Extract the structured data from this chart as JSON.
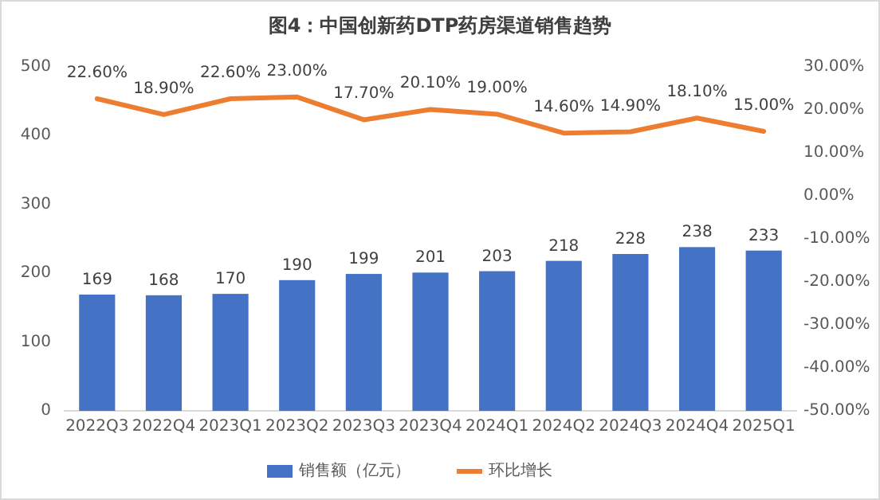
{
  "chart_data": {
    "type": "bar",
    "title": "图4：中国创新药DTP药房渠道销售趋势",
    "categories": [
      "2022Q3",
      "2022Q4",
      "2023Q1",
      "2023Q2",
      "2023Q3",
      "2023Q4",
      "2024Q1",
      "2024Q2",
      "2024Q3",
      "2024Q4",
      "2025Q1"
    ],
    "series": [
      {
        "name": "销售额（亿元）",
        "color": "#4472c4",
        "values": [
          169,
          168,
          170,
          190,
          199,
          201,
          203,
          218,
          228,
          238,
          233
        ],
        "value_labels": [
          "169",
          "168",
          "170",
          "190",
          "199",
          "201",
          "203",
          "218",
          "228",
          "238",
          "233"
        ]
      },
      {
        "name": "环比增长",
        "type": "line",
        "axis": "y2",
        "color": "#ed7d31",
        "values": [
          22.6,
          18.9,
          22.6,
          23.0,
          17.7,
          20.1,
          19.0,
          14.6,
          14.9,
          18.1,
          15.0
        ],
        "value_labels": [
          "22.60%",
          "18.90%",
          "22.60%",
          "23.00%",
          "17.70%",
          "20.10%",
          "19.00%",
          "14.60%",
          "14.90%",
          "18.10%",
          "15.00%"
        ]
      }
    ],
    "ylim": [
      0,
      500
    ],
    "yticks": [
      0,
      100,
      200,
      300,
      400,
      500
    ],
    "y2lim": [
      -50,
      30
    ],
    "y2ticks": [
      {
        "value": -50,
        "label": "-50.00%"
      },
      {
        "value": -40,
        "label": "-40.00%"
      },
      {
        "value": -30,
        "label": "-30.00%"
      },
      {
        "value": -20,
        "label": "-20.00%"
      },
      {
        "value": -10,
        "label": "-10.00%"
      },
      {
        "value": 0,
        "label": "0.00%"
      },
      {
        "value": 10,
        "label": "10.00%"
      },
      {
        "value": 20,
        "label": "20.00%"
      },
      {
        "value": 30,
        "label": "30.00%"
      }
    ],
    "legend": "bottom",
    "marker": "none",
    "line_style": "solid"
  }
}
